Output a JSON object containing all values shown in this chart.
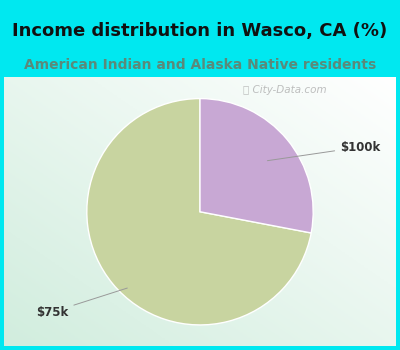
{
  "title": "Income distribution in Wasco, CA (%)",
  "subtitle": "American Indian and Alaska Native residents",
  "slices": [
    {
      "label": "$75k",
      "value": 72,
      "color": "#c8d4a0"
    },
    {
      "label": "$100k",
      "value": 28,
      "color": "#c8a8d4"
    }
  ],
  "background_color": "#00e8f0",
  "title_fontsize": 13,
  "subtitle_fontsize": 10,
  "title_color": "#111111",
  "subtitle_color": "#5a8a7a",
  "startangle": 90
}
